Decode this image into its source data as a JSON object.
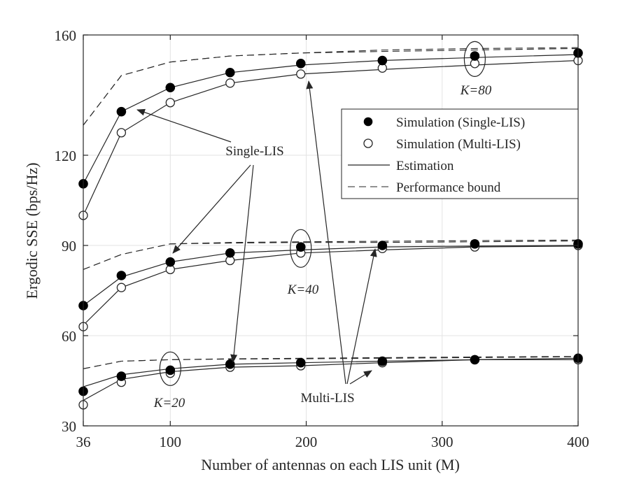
{
  "chart_data": {
    "type": "line",
    "xlabel": "Number of antennas on each LIS unit (M)",
    "ylabel": "Ergodic SSE (bps/Hz)",
    "xlim": [
      36,
      400
    ],
    "ylim": [
      30,
      160
    ],
    "xticks": [
      36,
      100,
      200,
      300,
      400
    ],
    "yticks": [
      30,
      60,
      90,
      120,
      160
    ],
    "grid": true,
    "legend_position": "top-right",
    "legend": [
      {
        "label": "Simulation (Single-LIS)",
        "style": "filled-circle"
      },
      {
        "label": "Simulation (Multi-LIS)",
        "style": "open-circle"
      },
      {
        "label": "Estimation",
        "style": "solid-line"
      },
      {
        "label": "Performance bound",
        "style": "dashed-line"
      }
    ],
    "x": [
      36,
      64,
      100,
      144,
      196,
      256,
      324,
      400
    ],
    "groups": [
      {
        "label": "K=20",
        "single_sim": [
          41.5,
          46.5,
          48.5,
          50.5,
          51,
          51.5,
          52,
          52.5
        ],
        "multi_sim": [
          37,
          44.5,
          47.5,
          49.5,
          50,
          51,
          52,
          52
        ],
        "single_est": [
          43,
          47,
          49,
          50.5,
          51,
          51.5,
          52,
          52.5
        ],
        "multi_est": [
          38.5,
          45.5,
          48,
          49.5,
          50,
          51,
          52,
          52
        ],
        "bound_single": [
          49,
          51.5,
          52,
          52.3,
          52.5,
          52.7,
          52.9,
          53.1
        ],
        "bound_multi": [
          49,
          51.5,
          52,
          52.2,
          52.3,
          52.5,
          52.7,
          53
        ]
      },
      {
        "label": "K=40",
        "single_sim": [
          70,
          80,
          84.5,
          87.5,
          89.5,
          90,
          90.5,
          90.5
        ],
        "multi_sim": [
          63,
          76,
          82,
          85,
          87.5,
          89,
          89.5,
          90
        ],
        "single_est": [
          70,
          79.5,
          84.5,
          87.5,
          88.5,
          89.5,
          89.8,
          90
        ],
        "multi_est": [
          63.5,
          76,
          82,
          85,
          87.5,
          88.5,
          89.5,
          89.8
        ],
        "bound_single": [
          82,
          87,
          90.5,
          91,
          91.2,
          91.4,
          91.6,
          91.8
        ],
        "bound_multi": [
          82,
          87,
          90.5,
          90.8,
          91,
          91,
          91.2,
          91.5
        ]
      },
      {
        "label": "K=80",
        "single_sim": [
          110.5,
          134.5,
          142.5,
          147.5,
          150.5,
          151.5,
          153,
          154
        ],
        "multi_sim": [
          100,
          127.5,
          137.5,
          144,
          147,
          149,
          150.5,
          151.5
        ],
        "single_est": [
          110.5,
          134.5,
          142.5,
          147.5,
          150,
          151.5,
          152.5,
          153.5
        ],
        "multi_est": [
          100,
          127.5,
          137.5,
          144,
          147,
          148.5,
          150,
          151.5
        ],
        "bound_single": [
          130,
          146.5,
          151,
          153,
          154,
          155,
          155.5,
          155.8
        ],
        "bound_multi": [
          130,
          146.5,
          151,
          153,
          154,
          154.5,
          155,
          155.5
        ]
      }
    ],
    "annotations": {
      "single_lis": "Single-LIS",
      "multi_lis": "Multi-LIS",
      "k20": "K=20",
      "k40": "K=40",
      "k80": "K=80"
    }
  }
}
